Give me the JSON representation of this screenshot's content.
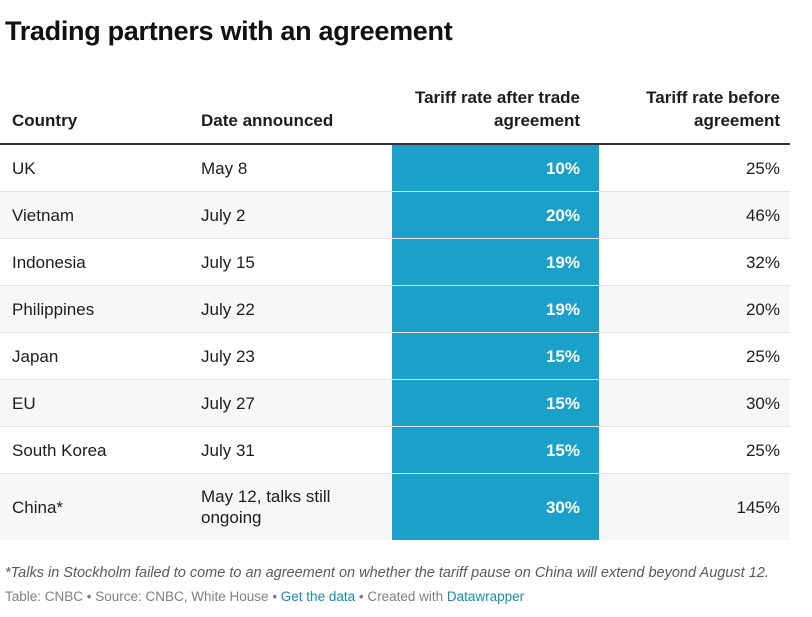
{
  "title": "Trading partners with an agreement",
  "columns": [
    "Country",
    "Date announced",
    "Tariff rate after trade agreement",
    "Tariff rate before agreement"
  ],
  "rows": [
    {
      "country": "UK",
      "date": "May 8",
      "after": "10%",
      "before": "25%"
    },
    {
      "country": "Vietnam",
      "date": "July 2",
      "after": "20%",
      "before": "46%"
    },
    {
      "country": "Indonesia",
      "date": "July 15",
      "after": "19%",
      "before": "32%"
    },
    {
      "country": "Philippines",
      "date": "July 22",
      "after": "19%",
      "before": "20%"
    },
    {
      "country": "Japan",
      "date": "July 23",
      "after": "15%",
      "before": "25%"
    },
    {
      "country": "EU",
      "date": "July 27",
      "after": "15%",
      "before": "30%"
    },
    {
      "country": "South Korea",
      "date": "July 31",
      "after": "15%",
      "before": "25%"
    },
    {
      "country": "China*",
      "date": "May 12, talks still ongoing",
      "after": "30%",
      "before": "145%"
    }
  ],
  "footnote": "*Talks in Stockholm failed to come to an agreement on whether the tariff pause on China will extend beyond August 12.",
  "credit": {
    "prefix": "Table: CNBC • Source: CNBC, White House • ",
    "get_data": "Get the data",
    "middle": " • Created with ",
    "tool": "Datawrapper"
  },
  "colors": {
    "highlight": "#1aa0c9",
    "link": "#1a8ab5",
    "alt_row": "#f7f7f7"
  },
  "chart_data": {
    "type": "table",
    "title": "Trading partners with an agreement",
    "columns": [
      "Country",
      "Date announced",
      "Tariff rate after trade agreement",
      "Tariff rate before agreement"
    ],
    "categories": [
      "UK",
      "Vietnam",
      "Indonesia",
      "Philippines",
      "Japan",
      "EU",
      "South Korea",
      "China*"
    ],
    "dates": [
      "May 8",
      "July 2",
      "July 15",
      "July 22",
      "July 23",
      "July 27",
      "July 31",
      "May 12, talks still ongoing"
    ],
    "series": [
      {
        "name": "Tariff rate after trade agreement",
        "values": [
          10,
          20,
          19,
          19,
          15,
          15,
          15,
          30
        ]
      },
      {
        "name": "Tariff rate before agreement",
        "values": [
          25,
          46,
          32,
          20,
          25,
          30,
          25,
          145
        ]
      }
    ]
  }
}
